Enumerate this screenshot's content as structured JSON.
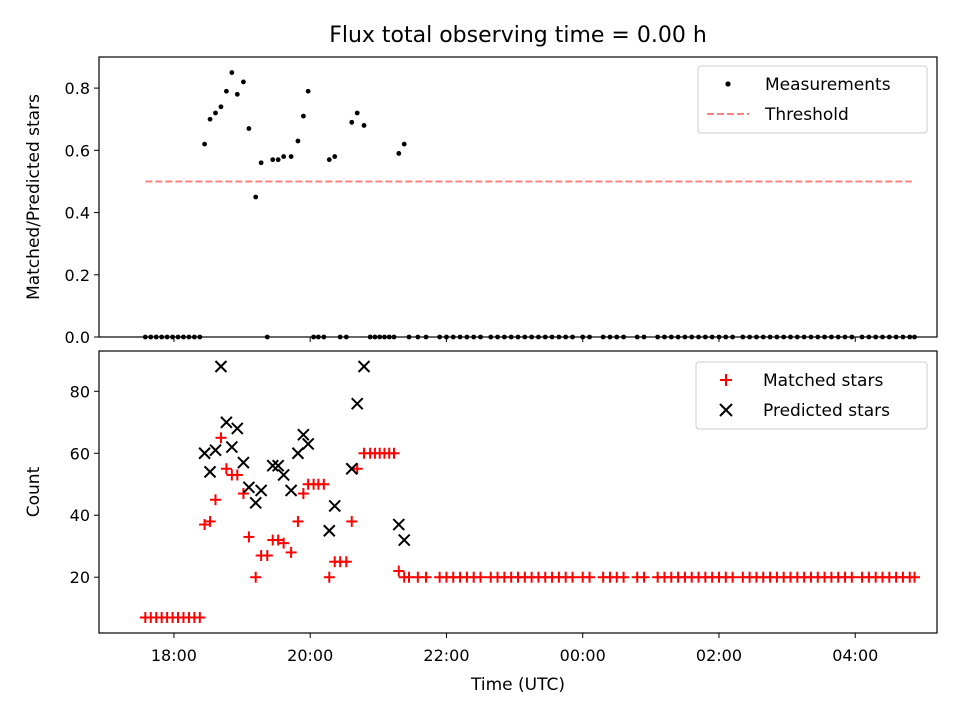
{
  "title": "Flux total observing time = 0.00 h",
  "colors": {
    "measurement": "#000000",
    "threshold": "#ff8080",
    "matched": "#ff0000",
    "predicted": "#000000"
  },
  "chart_data": [
    {
      "type": "scatter",
      "panel": "top",
      "title": "Flux total observing time = 0.00 h",
      "xlabel": "",
      "ylabel": "Matched/Predicted stars",
      "x_unit": "hours after 00:00 of first day (ticks shown as HH:MM)",
      "xlim": [
        16.9,
        29.2
      ],
      "ylim": [
        0.0,
        0.9
      ],
      "yticks": [
        0.0,
        0.2,
        0.4,
        0.6,
        0.8
      ],
      "ytick_labels": [
        "0.0",
        "0.2",
        "0.4",
        "0.6",
        "0.8"
      ],
      "grid": false,
      "legend": {
        "placement": "top-right",
        "entries": [
          "Measurements",
          "Threshold"
        ]
      },
      "threshold": {
        "name": "Threshold",
        "y": 0.5,
        "x_range": [
          17.58,
          28.83
        ]
      },
      "series": [
        {
          "name": "Measurements",
          "points": [
            [
              17.58,
              0
            ],
            [
              17.66,
              0
            ],
            [
              17.74,
              0
            ],
            [
              17.82,
              0
            ],
            [
              17.9,
              0
            ],
            [
              17.98,
              0
            ],
            [
              18.06,
              0
            ],
            [
              18.14,
              0
            ],
            [
              18.22,
              0
            ],
            [
              18.3,
              0
            ],
            [
              18.38,
              0
            ],
            [
              18.45,
              0.62
            ],
            [
              18.53,
              0.7
            ],
            [
              18.61,
              0.72
            ],
            [
              18.69,
              0.74
            ],
            [
              18.77,
              0.79
            ],
            [
              18.85,
              0.85
            ],
            [
              18.93,
              0.78
            ],
            [
              19.02,
              0.82
            ],
            [
              19.1,
              0.67
            ],
            [
              19.2,
              0.45
            ],
            [
              19.28,
              0.56
            ],
            [
              19.37,
              0
            ],
            [
              19.45,
              0.57
            ],
            [
              19.53,
              0.57
            ],
            [
              19.61,
              0.58
            ],
            [
              19.72,
              0.58
            ],
            [
              19.82,
              0.63
            ],
            [
              19.9,
              0.71
            ],
            [
              19.97,
              0.79
            ],
            [
              20.05,
              0
            ],
            [
              20.12,
              0
            ],
            [
              20.2,
              0
            ],
            [
              20.28,
              0.57
            ],
            [
              20.36,
              0.58
            ],
            [
              20.44,
              0
            ],
            [
              20.53,
              0
            ],
            [
              20.61,
              0.69
            ],
            [
              20.69,
              0.72
            ],
            [
              20.79,
              0.68
            ],
            [
              20.88,
              0
            ],
            [
              20.95,
              0
            ],
            [
              21.02,
              0
            ],
            [
              21.09,
              0
            ],
            [
              21.16,
              0
            ],
            [
              21.23,
              0
            ],
            [
              21.3,
              0.59
            ],
            [
              21.38,
              0.62
            ],
            [
              21.45,
              0
            ],
            [
              21.58,
              0
            ],
            [
              21.7,
              0
            ],
            [
              21.9,
              0
            ],
            [
              22.0,
              0
            ],
            [
              22.1,
              0
            ],
            [
              22.2,
              0
            ],
            [
              22.3,
              0
            ],
            [
              22.4,
              0
            ],
            [
              22.5,
              0
            ],
            [
              22.65,
              0
            ],
            [
              22.75,
              0
            ],
            [
              22.85,
              0
            ],
            [
              22.95,
              0
            ],
            [
              23.05,
              0
            ],
            [
              23.15,
              0
            ],
            [
              23.25,
              0
            ],
            [
              23.35,
              0
            ],
            [
              23.45,
              0
            ],
            [
              23.55,
              0
            ],
            [
              23.65,
              0
            ],
            [
              23.75,
              0
            ],
            [
              23.85,
              0
            ],
            [
              24.0,
              0
            ],
            [
              24.1,
              0
            ],
            [
              24.3,
              0
            ],
            [
              24.4,
              0
            ],
            [
              24.5,
              0
            ],
            [
              24.6,
              0
            ],
            [
              24.8,
              0
            ],
            [
              24.9,
              0
            ],
            [
              25.1,
              0
            ],
            [
              25.2,
              0
            ],
            [
              25.3,
              0
            ],
            [
              25.4,
              0
            ],
            [
              25.5,
              0
            ],
            [
              25.6,
              0
            ],
            [
              25.7,
              0
            ],
            [
              25.8,
              0
            ],
            [
              25.9,
              0
            ],
            [
              26.0,
              0
            ],
            [
              26.1,
              0
            ],
            [
              26.2,
              0
            ],
            [
              26.35,
              0
            ],
            [
              26.45,
              0
            ],
            [
              26.55,
              0
            ],
            [
              26.65,
              0
            ],
            [
              26.75,
              0
            ],
            [
              26.85,
              0
            ],
            [
              26.95,
              0
            ],
            [
              27.05,
              0
            ],
            [
              27.15,
              0
            ],
            [
              27.25,
              0
            ],
            [
              27.35,
              0
            ],
            [
              27.45,
              0
            ],
            [
              27.55,
              0
            ],
            [
              27.65,
              0
            ],
            [
              27.75,
              0
            ],
            [
              27.85,
              0
            ],
            [
              27.95,
              0
            ],
            [
              28.1,
              0
            ],
            [
              28.2,
              0
            ],
            [
              28.3,
              0
            ],
            [
              28.4,
              0
            ],
            [
              28.5,
              0
            ],
            [
              28.6,
              0
            ],
            [
              28.7,
              0
            ],
            [
              28.8,
              0
            ],
            [
              28.87,
              0
            ]
          ]
        }
      ]
    },
    {
      "type": "scatter",
      "panel": "bottom",
      "title": "",
      "xlabel": "Time (UTC)",
      "ylabel": "Count",
      "x_unit": "hours after 00:00 of first day (ticks shown as HH:MM)",
      "xlim": [
        16.9,
        29.2
      ],
      "ylim": [
        2,
        93
      ],
      "yticks": [
        20,
        40,
        60,
        80
      ],
      "ytick_labels": [
        "20",
        "40",
        "60",
        "80"
      ],
      "xticks": [
        18,
        20,
        22,
        24,
        26,
        28
      ],
      "xtick_labels": [
        "18:00",
        "20:00",
        "22:00",
        "00:00",
        "02:00",
        "04:00"
      ],
      "grid": false,
      "legend": {
        "placement": "top-right",
        "entries": [
          "Matched stars",
          "Predicted stars"
        ]
      },
      "series": [
        {
          "name": "Matched stars",
          "marker": "plus",
          "points": [
            [
              17.58,
              7
            ],
            [
              17.66,
              7
            ],
            [
              17.74,
              7
            ],
            [
              17.82,
              7
            ],
            [
              17.9,
              7
            ],
            [
              17.98,
              7
            ],
            [
              18.06,
              7
            ],
            [
              18.14,
              7
            ],
            [
              18.22,
              7
            ],
            [
              18.3,
              7
            ],
            [
              18.38,
              7
            ],
            [
              18.45,
              37
            ],
            [
              18.53,
              38
            ],
            [
              18.61,
              45
            ],
            [
              18.69,
              65
            ],
            [
              18.77,
              55
            ],
            [
              18.85,
              53
            ],
            [
              18.93,
              53
            ],
            [
              19.02,
              47
            ],
            [
              19.1,
              33
            ],
            [
              19.2,
              20
            ],
            [
              19.28,
              27
            ],
            [
              19.37,
              27
            ],
            [
              19.45,
              32
            ],
            [
              19.53,
              32
            ],
            [
              19.61,
              31
            ],
            [
              19.72,
              28
            ],
            [
              19.82,
              38
            ],
            [
              19.9,
              47
            ],
            [
              19.97,
              50
            ],
            [
              20.05,
              50
            ],
            [
              20.12,
              50
            ],
            [
              20.2,
              50
            ],
            [
              20.28,
              20
            ],
            [
              20.36,
              25
            ],
            [
              20.44,
              25
            ],
            [
              20.53,
              25
            ],
            [
              20.61,
              38
            ],
            [
              20.69,
              55
            ],
            [
              20.79,
              60
            ],
            [
              20.88,
              60
            ],
            [
              20.95,
              60
            ],
            [
              21.02,
              60
            ],
            [
              21.09,
              60
            ],
            [
              21.16,
              60
            ],
            [
              21.23,
              60
            ],
            [
              21.3,
              22
            ],
            [
              21.38,
              20
            ],
            [
              21.45,
              20
            ],
            [
              21.58,
              20
            ],
            [
              21.7,
              20
            ],
            [
              21.9,
              20
            ],
            [
              22.0,
              20
            ],
            [
              22.1,
              20
            ],
            [
              22.2,
              20
            ],
            [
              22.3,
              20
            ],
            [
              22.4,
              20
            ],
            [
              22.5,
              20
            ],
            [
              22.65,
              20
            ],
            [
              22.75,
              20
            ],
            [
              22.85,
              20
            ],
            [
              22.95,
              20
            ],
            [
              23.05,
              20
            ],
            [
              23.15,
              20
            ],
            [
              23.25,
              20
            ],
            [
              23.35,
              20
            ],
            [
              23.45,
              20
            ],
            [
              23.55,
              20
            ],
            [
              23.65,
              20
            ],
            [
              23.75,
              20
            ],
            [
              23.85,
              20
            ],
            [
              24.0,
              20
            ],
            [
              24.1,
              20
            ],
            [
              24.3,
              20
            ],
            [
              24.4,
              20
            ],
            [
              24.5,
              20
            ],
            [
              24.6,
              20
            ],
            [
              24.8,
              20
            ],
            [
              24.9,
              20
            ],
            [
              25.1,
              20
            ],
            [
              25.2,
              20
            ],
            [
              25.3,
              20
            ],
            [
              25.4,
              20
            ],
            [
              25.5,
              20
            ],
            [
              25.6,
              20
            ],
            [
              25.7,
              20
            ],
            [
              25.8,
              20
            ],
            [
              25.9,
              20
            ],
            [
              26.0,
              20
            ],
            [
              26.1,
              20
            ],
            [
              26.2,
              20
            ],
            [
              26.35,
              20
            ],
            [
              26.45,
              20
            ],
            [
              26.55,
              20
            ],
            [
              26.65,
              20
            ],
            [
              26.75,
              20
            ],
            [
              26.85,
              20
            ],
            [
              26.95,
              20
            ],
            [
              27.05,
              20
            ],
            [
              27.15,
              20
            ],
            [
              27.25,
              20
            ],
            [
              27.35,
              20
            ],
            [
              27.45,
              20
            ],
            [
              27.55,
              20
            ],
            [
              27.65,
              20
            ],
            [
              27.75,
              20
            ],
            [
              27.85,
              20
            ],
            [
              27.95,
              20
            ],
            [
              28.1,
              20
            ],
            [
              28.2,
              20
            ],
            [
              28.3,
              20
            ],
            [
              28.4,
              20
            ],
            [
              28.5,
              20
            ],
            [
              28.6,
              20
            ],
            [
              28.7,
              20
            ],
            [
              28.8,
              20
            ],
            [
              28.87,
              20
            ]
          ]
        },
        {
          "name": "Predicted stars",
          "marker": "x",
          "points": [
            [
              18.45,
              60
            ],
            [
              18.53,
              54
            ],
            [
              18.61,
              61
            ],
            [
              18.69,
              88
            ],
            [
              18.77,
              70
            ],
            [
              18.85,
              62
            ],
            [
              18.93,
              68
            ],
            [
              19.02,
              57
            ],
            [
              19.1,
              49
            ],
            [
              19.2,
              44
            ],
            [
              19.28,
              48
            ],
            [
              19.45,
              56
            ],
            [
              19.53,
              56
            ],
            [
              19.61,
              53
            ],
            [
              19.72,
              48
            ],
            [
              19.82,
              60
            ],
            [
              19.9,
              66
            ],
            [
              19.97,
              63
            ],
            [
              20.28,
              35
            ],
            [
              20.36,
              43
            ],
            [
              20.61,
              55
            ],
            [
              20.69,
              76
            ],
            [
              20.79,
              88
            ],
            [
              21.3,
              37
            ],
            [
              21.38,
              32
            ]
          ]
        }
      ]
    }
  ]
}
